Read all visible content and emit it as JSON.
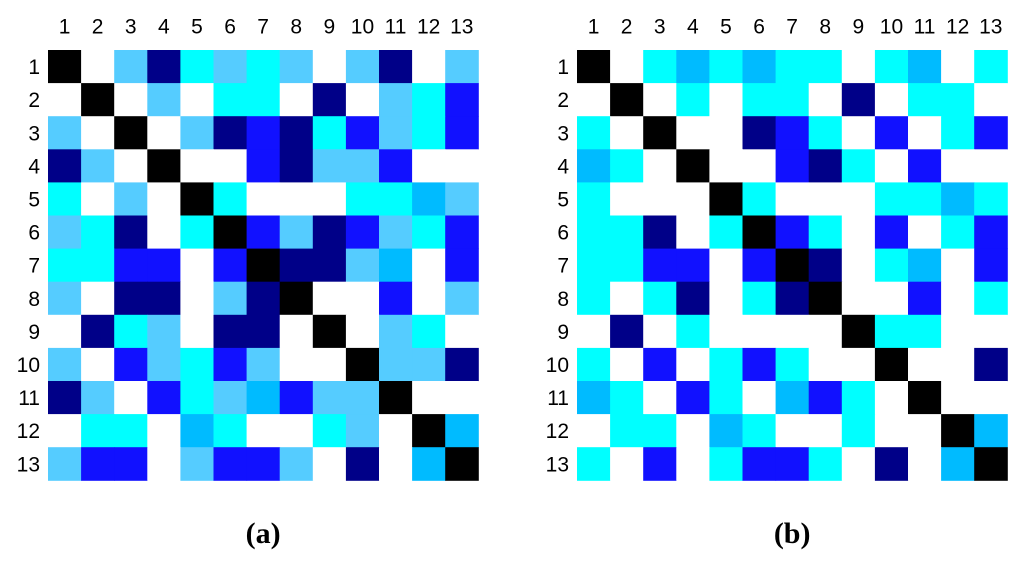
{
  "panels": [
    {
      "caption": "(a)",
      "column_labels": [
        1,
        2,
        3,
        4,
        5,
        6,
        7,
        8,
        9,
        10,
        11,
        12,
        13
      ],
      "row_labels": [
        1,
        2,
        3,
        4,
        5,
        6,
        7,
        8,
        9,
        10,
        11,
        12,
        13
      ],
      "colors": [
        [
          "#000",
          "#fff",
          "#5cf",
          "#008",
          "#0ff",
          "#5cf",
          "#0ff",
          "#5cf",
          "#fff",
          "#5cf",
          "#008",
          "#fff",
          "#5cf"
        ],
        [
          "#fff",
          "#000",
          "#fff",
          "#5cf",
          "#fff",
          "#0ff",
          "#0ff",
          "#fff",
          "#008",
          "#fff",
          "#5cf",
          "#0ff",
          "#11f"
        ],
        [
          "#5cf",
          "#fff",
          "#000",
          "#fff",
          "#5cf",
          "#008",
          "#11f",
          "#008",
          "#0ff",
          "#11f",
          "#5cf",
          "#0ff",
          "#11f"
        ],
        [
          "#008",
          "#5cf",
          "#fff",
          "#000",
          "#fff",
          "#fff",
          "#11f",
          "#008",
          "#5cf",
          "#5cf",
          "#11f",
          "#fff",
          "#fff"
        ],
        [
          "#0ff",
          "#fff",
          "#5cf",
          "#fff",
          "#000",
          "#0ff",
          "#fff",
          "#fff",
          "#fff",
          "#0ff",
          "#0ff",
          "#0bf",
          "#5cf"
        ],
        [
          "#5cf",
          "#0ff",
          "#008",
          "#fff",
          "#0ff",
          "#000",
          "#11f",
          "#5cf",
          "#008",
          "#11f",
          "#5cf",
          "#0ff",
          "#11f"
        ],
        [
          "#0ff",
          "#0ff",
          "#11f",
          "#11f",
          "#fff",
          "#11f",
          "#000",
          "#008",
          "#008",
          "#5cf",
          "#0bf",
          "#fff",
          "#11f"
        ],
        [
          "#5cf",
          "#fff",
          "#008",
          "#008",
          "#fff",
          "#5cf",
          "#008",
          "#000",
          "#fff",
          "#fff",
          "#11f",
          "#fff",
          "#5cf"
        ],
        [
          "#fff",
          "#008",
          "#0ff",
          "#5cf",
          "#fff",
          "#008",
          "#008",
          "#fff",
          "#000",
          "#fff",
          "#5cf",
          "#0ff",
          "#fff"
        ],
        [
          "#5cf",
          "#fff",
          "#11f",
          "#5cf",
          "#0ff",
          "#11f",
          "#5cf",
          "#fff",
          "#fff",
          "#000",
          "#5cf",
          "#5cf",
          "#008"
        ],
        [
          "#008",
          "#5cf",
          "#fff",
          "#11f",
          "#0ff",
          "#5cf",
          "#0bf",
          "#11f",
          "#5cf",
          "#5cf",
          "#000",
          "#fff",
          "#fff"
        ],
        [
          "#fff",
          "#0ff",
          "#0ff",
          "#fff",
          "#0bf",
          "#0ff",
          "#fff",
          "#fff",
          "#0ff",
          "#5cf",
          "#fff",
          "#000",
          "#0bf"
        ],
        [
          "#5cf",
          "#11f",
          "#11f",
          "#fff",
          "#5cf",
          "#11f",
          "#11f",
          "#5cf",
          "#fff",
          "#008",
          "#fff",
          "#0bf",
          "#000"
        ]
      ]
    },
    {
      "caption": "(b)",
      "column_labels": [
        1,
        2,
        3,
        4,
        5,
        6,
        7,
        8,
        9,
        10,
        11,
        12,
        13
      ],
      "row_labels": [
        1,
        2,
        3,
        4,
        5,
        6,
        7,
        8,
        9,
        10,
        11,
        12,
        13
      ],
      "colors": [
        [
          "#000",
          "#fff",
          "#0ff",
          "#0bf",
          "#0ff",
          "#0bf",
          "#0ff",
          "#0ff",
          "#fff",
          "#0ff",
          "#0bf",
          "#fff",
          "#0ff"
        ],
        [
          "#fff",
          "#000",
          "#fff",
          "#0ff",
          "#fff",
          "#0ff",
          "#0ff",
          "#fff",
          "#008",
          "#fff",
          "#0ff",
          "#0ff",
          "#fff"
        ],
        [
          "#0ff",
          "#fff",
          "#000",
          "#fff",
          "#fff",
          "#008",
          "#11f",
          "#0ff",
          "#fff",
          "#11f",
          "#fff",
          "#0ff",
          "#11f"
        ],
        [
          "#0bf",
          "#0ff",
          "#fff",
          "#000",
          "#fff",
          "#fff",
          "#11f",
          "#008",
          "#0ff",
          "#fff",
          "#11f",
          "#fff",
          "#fff"
        ],
        [
          "#0ff",
          "#fff",
          "#fff",
          "#fff",
          "#000",
          "#0ff",
          "#fff",
          "#fff",
          "#fff",
          "#0ff",
          "#0ff",
          "#0bf",
          "#0ff"
        ],
        [
          "#0ff",
          "#0ff",
          "#008",
          "#fff",
          "#0ff",
          "#000",
          "#11f",
          "#0ff",
          "#fff",
          "#11f",
          "#fff",
          "#0ff",
          "#11f"
        ],
        [
          "#0ff",
          "#0ff",
          "#11f",
          "#11f",
          "#fff",
          "#11f",
          "#000",
          "#008",
          "#fff",
          "#0ff",
          "#0bf",
          "#fff",
          "#11f"
        ],
        [
          "#0ff",
          "#fff",
          "#0ff",
          "#008",
          "#fff",
          "#0ff",
          "#008",
          "#000",
          "#fff",
          "#fff",
          "#11f",
          "#fff",
          "#0ff"
        ],
        [
          "#fff",
          "#008",
          "#fff",
          "#0ff",
          "#fff",
          "#fff",
          "#fff",
          "#fff",
          "#000",
          "#0ff",
          "#0ff",
          "#fff",
          "#fff"
        ],
        [
          "#0ff",
          "#fff",
          "#11f",
          "#fff",
          "#0ff",
          "#11f",
          "#0ff",
          "#fff",
          "#fff",
          "#000",
          "#fff",
          "#fff",
          "#008"
        ],
        [
          "#0bf",
          "#0ff",
          "#fff",
          "#11f",
          "#0ff",
          "#fff",
          "#0bf",
          "#11f",
          "#0ff",
          "#fff",
          "#000",
          "#fff",
          "#fff"
        ],
        [
          "#fff",
          "#0ff",
          "#0ff",
          "#fff",
          "#0bf",
          "#0ff",
          "#fff",
          "#fff",
          "#0ff",
          "#fff",
          "#fff",
          "#000",
          "#0bf"
        ],
        [
          "#0ff",
          "#fff",
          "#11f",
          "#fff",
          "#0ff",
          "#11f",
          "#11f",
          "#0ff",
          "#fff",
          "#008",
          "#fff",
          "#0bf",
          "#000"
        ]
      ]
    }
  ]
}
